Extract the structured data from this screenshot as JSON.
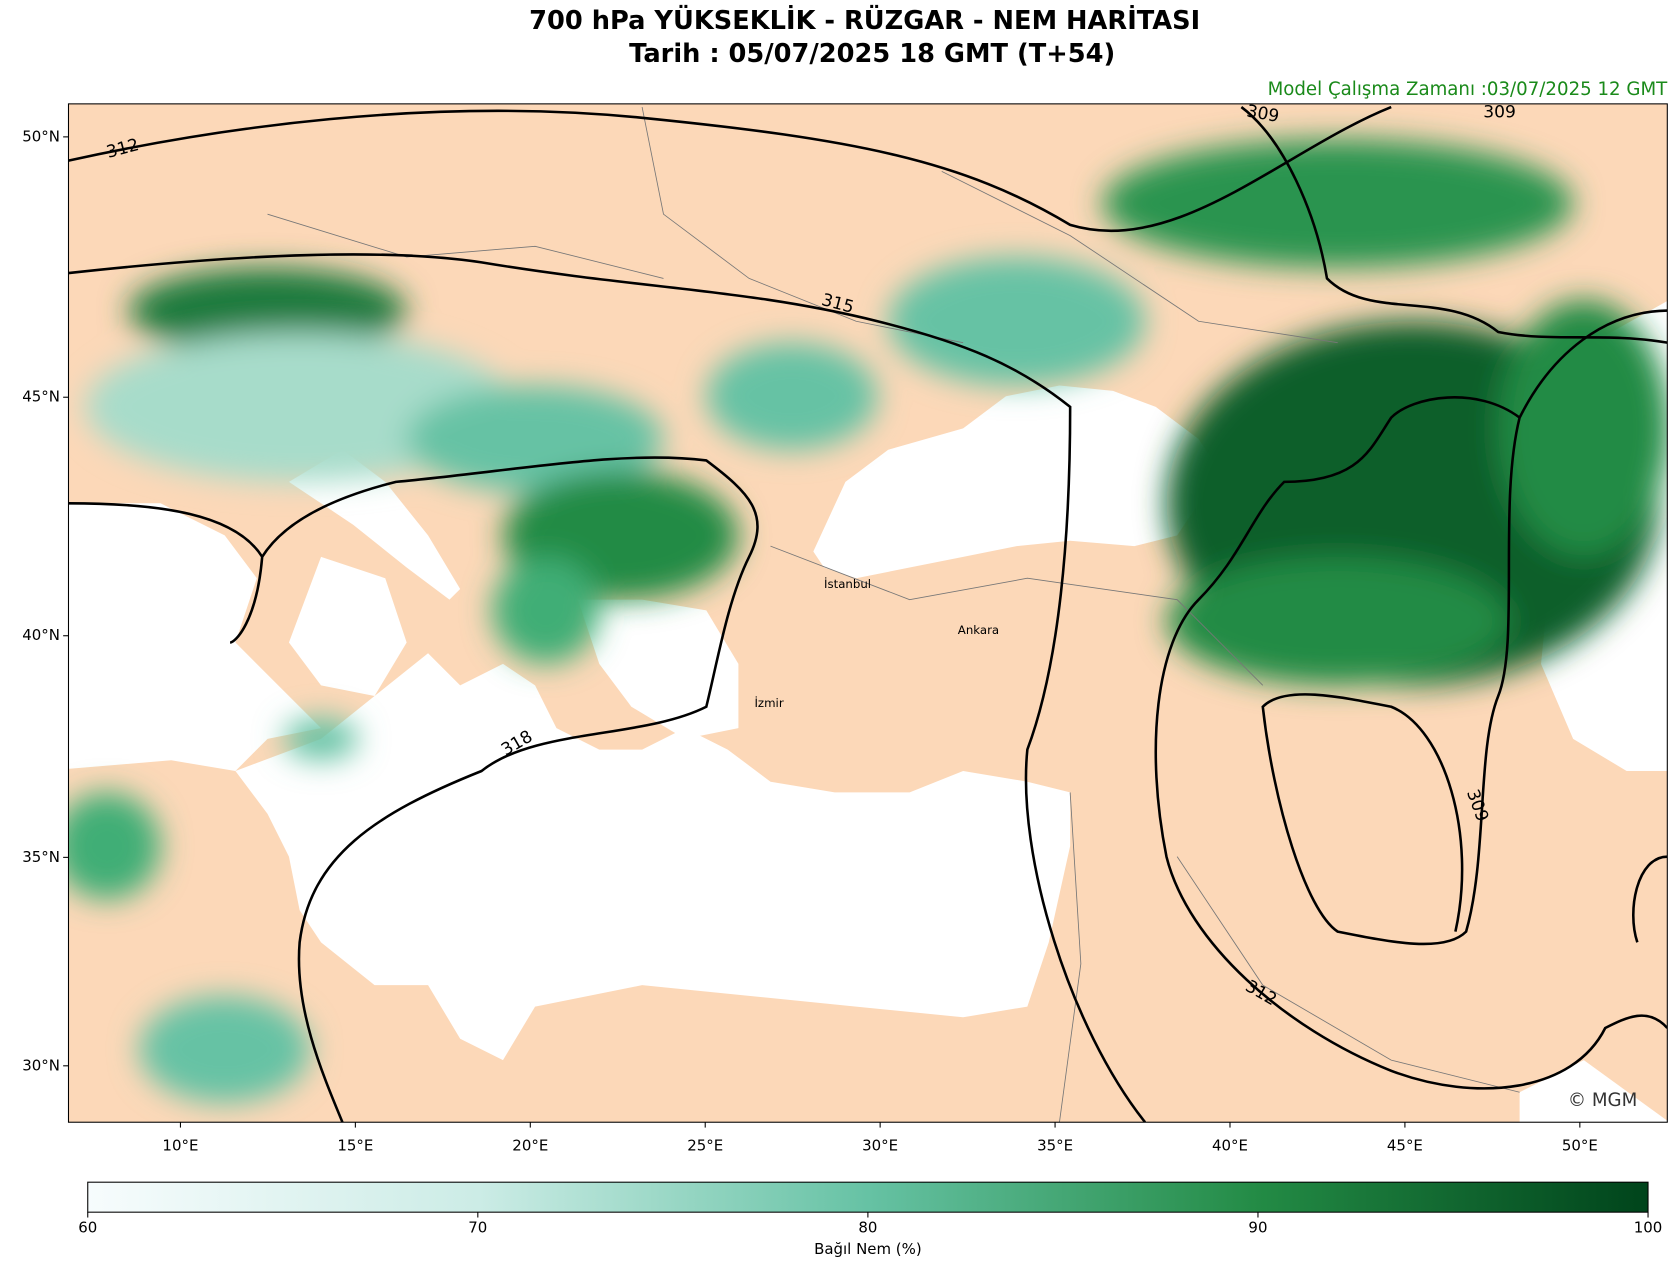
{
  "title": [
    "700 hPa YÜKSEKLİK - RÜZGAR - NEM HARİTASI",
    "Tarih : 05/07/2025  18 GMT (T+54)"
  ],
  "model_time": "Model Çalışma Zamanı :03/07/2025  12 GMT",
  "map": {
    "xlim": [
      6.8,
      52.5
    ],
    "ylim": [
      28.6,
      50.6
    ],
    "xticks": [
      {
        "value": 10,
        "label": "10°E"
      },
      {
        "value": 15,
        "label": "15°E"
      },
      {
        "value": 20,
        "label": "20°E"
      },
      {
        "value": 25,
        "label": "25°E"
      },
      {
        "value": 30,
        "label": "30°E"
      },
      {
        "value": 35,
        "label": "35°E"
      },
      {
        "value": 40,
        "label": "40°E"
      },
      {
        "value": 45,
        "label": "45°E"
      },
      {
        "value": 50,
        "label": "50°E"
      }
    ],
    "yticks": [
      {
        "value": 30,
        "label": "30°N"
      },
      {
        "value": 35,
        "label": "35°N"
      },
      {
        "value": 40,
        "label": "40°N"
      },
      {
        "value": 45,
        "label": "45°N"
      },
      {
        "value": 50,
        "label": "50°N"
      }
    ],
    "contour_labels": [
      "312",
      "309",
      "309",
      "315",
      "318",
      "309",
      "312"
    ],
    "cities": [
      "İstanbul",
      "Ankara",
      "İzmir"
    ]
  },
  "colorbar": {
    "label": "Bağıl Nem (%)",
    "lim": [
      60,
      100
    ],
    "ticks": [
      60,
      70,
      80,
      90,
      100
    ]
  },
  "copyright": "© MGM"
}
